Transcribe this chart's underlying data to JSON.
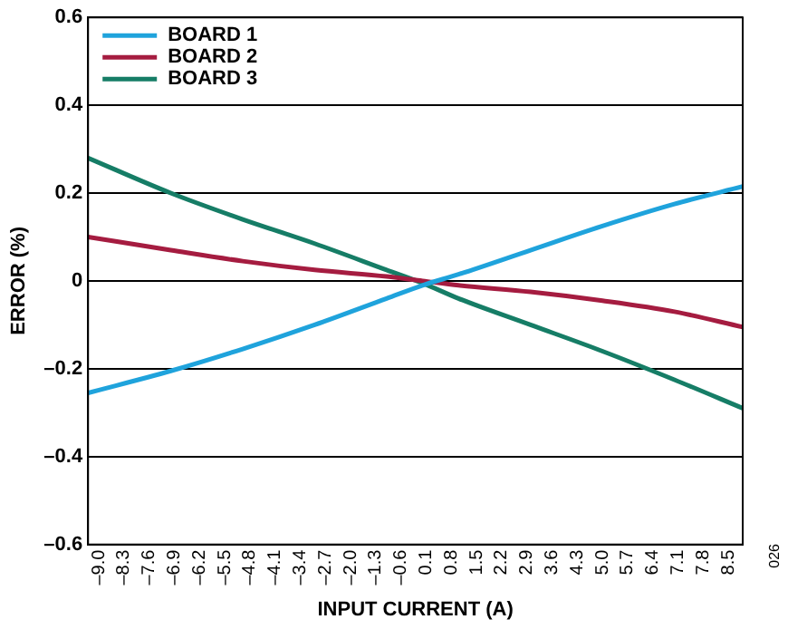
{
  "chart_data": {
    "type": "line",
    "xlabel": "INPUT CURRENT (A)",
    "ylabel": "ERROR (%)",
    "x": [
      -9.3,
      -7,
      -5,
      -3,
      -1,
      0,
      1,
      3,
      5,
      7,
      8.9
    ],
    "series": [
      {
        "name": "BOARD 1",
        "color": "#1fa3dc",
        "values": [
          -0.255,
          -0.205,
          -0.155,
          -0.1,
          -0.04,
          -0.01,
          0.015,
          0.07,
          0.125,
          0.175,
          0.215
        ]
      },
      {
        "name": "BOARD 2",
        "color": "#a51c40",
        "values": [
          0.1,
          0.07,
          0.045,
          0.025,
          0.01,
          0.0,
          -0.01,
          -0.025,
          -0.045,
          -0.07,
          -0.105
        ]
      },
      {
        "name": "BOARD 3",
        "color": "#167d66",
        "values": [
          0.28,
          0.2,
          0.14,
          0.085,
          0.025,
          -0.005,
          -0.04,
          -0.1,
          -0.16,
          -0.225,
          -0.29
        ]
      }
    ],
    "xlim": [
      -9.3,
      8.9
    ],
    "xticks": [
      {
        "value": -9.0,
        "label": "–9.0"
      },
      {
        "value": -8.3,
        "label": "–8.3"
      },
      {
        "value": -7.6,
        "label": "–7.6"
      },
      {
        "value": -6.9,
        "label": "–6.9"
      },
      {
        "value": -6.2,
        "label": "–6.2"
      },
      {
        "value": -5.5,
        "label": "–5.5"
      },
      {
        "value": -4.8,
        "label": "–4.8"
      },
      {
        "value": -4.1,
        "label": "–4.1"
      },
      {
        "value": -3.4,
        "label": "–3.4"
      },
      {
        "value": -2.7,
        "label": "–2.7"
      },
      {
        "value": -2.0,
        "label": "–2.0"
      },
      {
        "value": -1.3,
        "label": "–1.3"
      },
      {
        "value": -0.6,
        "label": "–0.6"
      },
      {
        "value": 0.1,
        "label": "0.1"
      },
      {
        "value": 0.8,
        "label": "0.8"
      },
      {
        "value": 1.5,
        "label": "1.5"
      },
      {
        "value": 2.2,
        "label": "2.2"
      },
      {
        "value": 2.9,
        "label": "2.9"
      },
      {
        "value": 3.6,
        "label": "3.6"
      },
      {
        "value": 4.3,
        "label": "4.3"
      },
      {
        "value": 5.0,
        "label": "5.0"
      },
      {
        "value": 5.7,
        "label": "5.7"
      },
      {
        "value": 6.4,
        "label": "6.4"
      },
      {
        "value": 7.1,
        "label": "7.1"
      },
      {
        "value": 7.8,
        "label": "7.8"
      },
      {
        "value": 8.5,
        "label": "8.5"
      }
    ],
    "ylim": [
      -0.6,
      0.6
    ],
    "yticks": [
      {
        "value": -0.6,
        "label": "–0.6"
      },
      {
        "value": -0.4,
        "label": "–0.4"
      },
      {
        "value": -0.2,
        "label": "–0.2"
      },
      0,
      {
        "value": 0.2,
        "label": "0.2"
      },
      {
        "value": 0.4,
        "label": "0.4"
      },
      {
        "value": 0.6,
        "label": "0.6"
      }
    ],
    "grid": "y",
    "legend": "top left",
    "marker": "none",
    "line_style": "solid",
    "annotations": [
      "026"
    ]
  }
}
